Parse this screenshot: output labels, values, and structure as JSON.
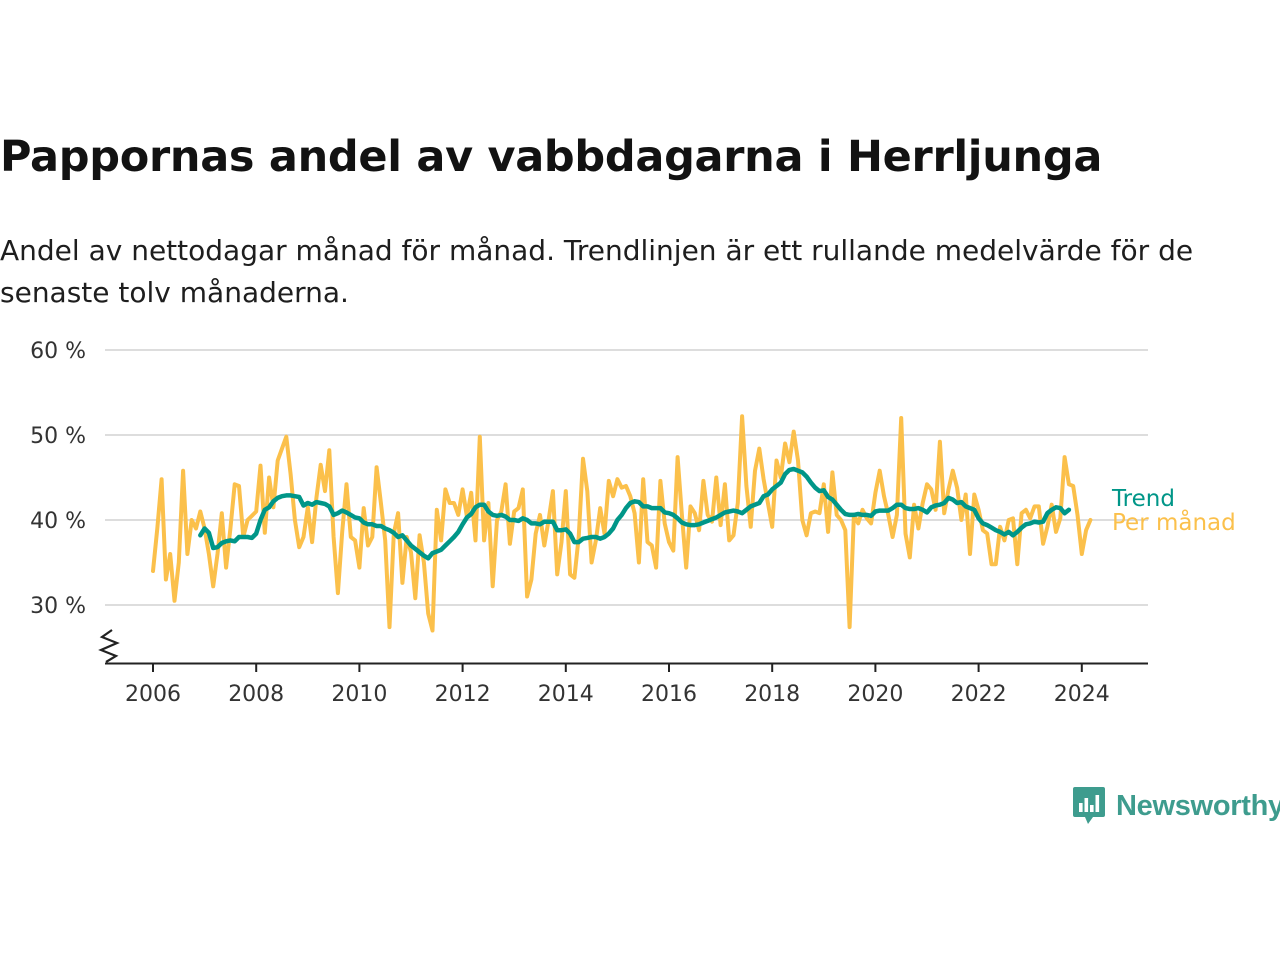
{
  "header": {
    "title": "Pappornas andel av vabbdagarna i Herrljunga",
    "subtitle": "Andel av nettodagar månad för månad. Trendlinjen är ett rullande medelvärde för de senaste tolv månaderna."
  },
  "brand": {
    "name": "Newsworthy",
    "color": "#3e9c8e",
    "icon": "newsworthy-chart-icon"
  },
  "chart_data": {
    "type": "line",
    "title": "Pappornas andel av vabbdagarna i Herrljunga",
    "subtitle": "Andel av nettodagar månad för månad. Trendlinjen är ett rullande medelvärde för de senaste tolv månaderna.",
    "xlabel": "",
    "ylabel": "",
    "x_start": "2006-01",
    "x_ticks": [
      "2006",
      "2008",
      "2010",
      "2012",
      "2014",
      "2016",
      "2018",
      "2020",
      "2022",
      "2024"
    ],
    "y_ticks": [
      "30 %",
      "40 %",
      "50 %",
      "60 %"
    ],
    "y_tick_values": [
      30,
      40,
      50,
      60
    ],
    "ylim": [
      23,
      60
    ],
    "xlim": [
      "2006-01",
      "2025-05"
    ],
    "grid": true,
    "broken_y_axis": true,
    "legend": "inline labels at line ends (right)",
    "series": [
      {
        "name": "Per månad",
        "color": "#fbc04b",
        "start": "2006-01",
        "values": [
          34,
          39,
          44.8,
          33,
          36,
          30.5,
          35,
          45.8,
          36,
          40,
          39,
          41,
          39,
          36,
          32.2,
          36,
          40.8,
          34.4,
          39,
          44.2,
          44,
          38,
          40,
          40.5,
          41,
          46.4,
          38.5,
          45,
          41.5,
          47,
          48.4,
          49.8,
          45.4,
          40,
          36.8,
          38,
          41.5,
          37.4,
          42.6,
          46.5,
          43.4,
          48.2,
          38,
          31.4,
          38.6,
          44.2,
          38,
          37.6,
          34.4,
          41.4,
          37,
          38,
          46.2,
          42,
          37.6,
          27.4,
          38.4,
          40.8,
          32.6,
          38,
          36.2,
          30.8,
          38.2,
          35,
          29,
          27,
          41.2,
          37.6,
          43.6,
          42,
          42,
          40.6,
          43.6,
          40.4,
          43.2,
          37.6,
          49.8,
          37.6,
          42,
          32.2,
          40,
          41,
          44.2,
          37.2,
          41,
          41.4,
          43.6,
          31,
          33,
          38.4,
          40.6,
          37,
          40,
          43.4,
          33.6,
          37.4,
          43.4,
          33.6,
          33.2,
          38,
          47.2,
          43.4,
          35,
          37.6,
          41.4,
          38.4,
          44.6,
          42.8,
          44.8,
          43.8,
          44,
          42.8,
          40.8,
          35,
          44.8,
          37.4,
          37,
          34.4,
          44.6,
          39.6,
          37.4,
          36.4,
          47.4,
          40.6,
          34.4,
          41.6,
          40.8,
          38.8,
          44.6,
          40.6,
          39.8,
          45,
          39.4,
          44.2,
          37.6,
          38.2,
          42,
          52.2,
          44,
          39.2,
          45.8,
          48.4,
          44.8,
          42,
          39.2,
          47,
          45,
          49,
          46.8,
          50.4,
          47,
          40,
          38.2,
          40.8,
          41,
          40.8,
          44.2,
          38.6,
          45.6,
          40.6,
          40,
          38.8,
          27.4,
          40.6,
          39.6,
          41.2,
          40.2,
          39.6,
          43.2,
          45.8,
          42.8,
          40.6,
          38,
          40.6,
          52,
          38.4,
          35.6,
          41.8,
          39,
          42,
          44.2,
          43.6,
          41.2,
          49.2,
          40.8,
          43.6,
          45.8,
          43.8,
          40,
          43,
          36,
          43,
          41.2,
          38.8,
          38.4,
          34.8,
          34.8,
          39.2,
          37.6,
          40,
          40.2,
          34.8,
          40.8,
          41.2,
          40.2,
          41.6,
          41.6,
          37.2,
          39.2,
          41.8,
          38.6,
          40.2,
          47.4,
          44.2,
          44,
          40.6,
          36,
          38.8,
          40
        ]
      },
      {
        "name": "Trend",
        "color": "#009688",
        "start": "2006-12",
        "values": [
          38.2,
          39,
          38.5,
          36.7,
          36.8,
          37.3,
          37.5,
          37.6,
          37.5,
          38,
          38,
          38,
          37.9,
          38.4,
          40,
          41.2,
          41.5,
          42.2,
          42.6,
          42.8,
          42.9,
          42.9,
          42.8,
          42.7,
          41.7,
          42.0,
          41.8,
          42.1,
          42.0,
          41.9,
          41.6,
          40.6,
          40.8,
          41.1,
          40.9,
          40.6,
          40.3,
          40.2,
          39.7,
          39.5,
          39.5,
          39.3,
          39.3,
          39.0,
          38.8,
          38.5,
          38.0,
          38.2,
          37.6,
          37.0,
          36.6,
          36.2,
          35.8,
          35.5,
          36.1,
          36.3,
          36.5,
          37.0,
          37.5,
          38.0,
          38.6,
          39.5,
          40.3,
          40.7,
          41.5,
          41.8,
          41.8,
          41.0,
          40.6,
          40.5,
          40.6,
          40.4,
          40.0,
          40.0,
          39.9,
          40.2,
          40.0,
          39.6,
          39.6,
          39.5,
          39.8,
          39.8,
          39.8,
          38.8,
          38.8,
          38.9,
          38.4,
          37.4,
          37.4,
          37.8,
          37.9,
          38.0,
          38.0,
          37.8,
          38.0,
          38.4,
          39.0,
          40.0,
          40.6,
          41.4,
          42.0,
          42.2,
          42.1,
          41.6,
          41.6,
          41.4,
          41.4,
          41.4,
          40.9,
          40.8,
          40.6,
          40.2,
          39.7,
          39.5,
          39.4,
          39.4,
          39.5,
          39.7,
          39.9,
          40.1,
          40.3,
          40.6,
          40.9,
          41.0,
          41.1,
          41.0,
          40.8,
          41.2,
          41.6,
          41.8,
          42.0,
          42.8,
          43.0,
          43.6,
          44.0,
          44.4,
          45.4,
          45.9,
          46.0,
          45.8,
          45.6,
          45.1,
          44.4,
          43.8,
          43.4,
          43.5,
          42.7,
          42.4,
          41.8,
          41.2,
          40.7,
          40.6,
          40.6,
          40.7,
          40.6,
          40.6,
          40.5,
          41.0,
          41.1,
          41.1,
          41.1,
          41.4,
          41.8,
          41.8,
          41.4,
          41.3,
          41.3,
          41.4,
          41.2,
          40.9,
          41.5,
          41.7,
          41.8,
          42.0,
          42.6,
          42.4,
          42.0,
          42.1,
          41.6,
          41.4,
          41.2,
          40.2,
          39.6,
          39.4,
          39.1,
          38.8,
          38.6,
          38.3,
          38.6,
          38.2,
          38.6,
          39.1,
          39.5,
          39.6,
          39.8,
          39.7,
          39.8,
          40.8,
          41.2,
          41.5,
          41.4,
          40.8,
          41.2
        ]
      }
    ]
  }
}
